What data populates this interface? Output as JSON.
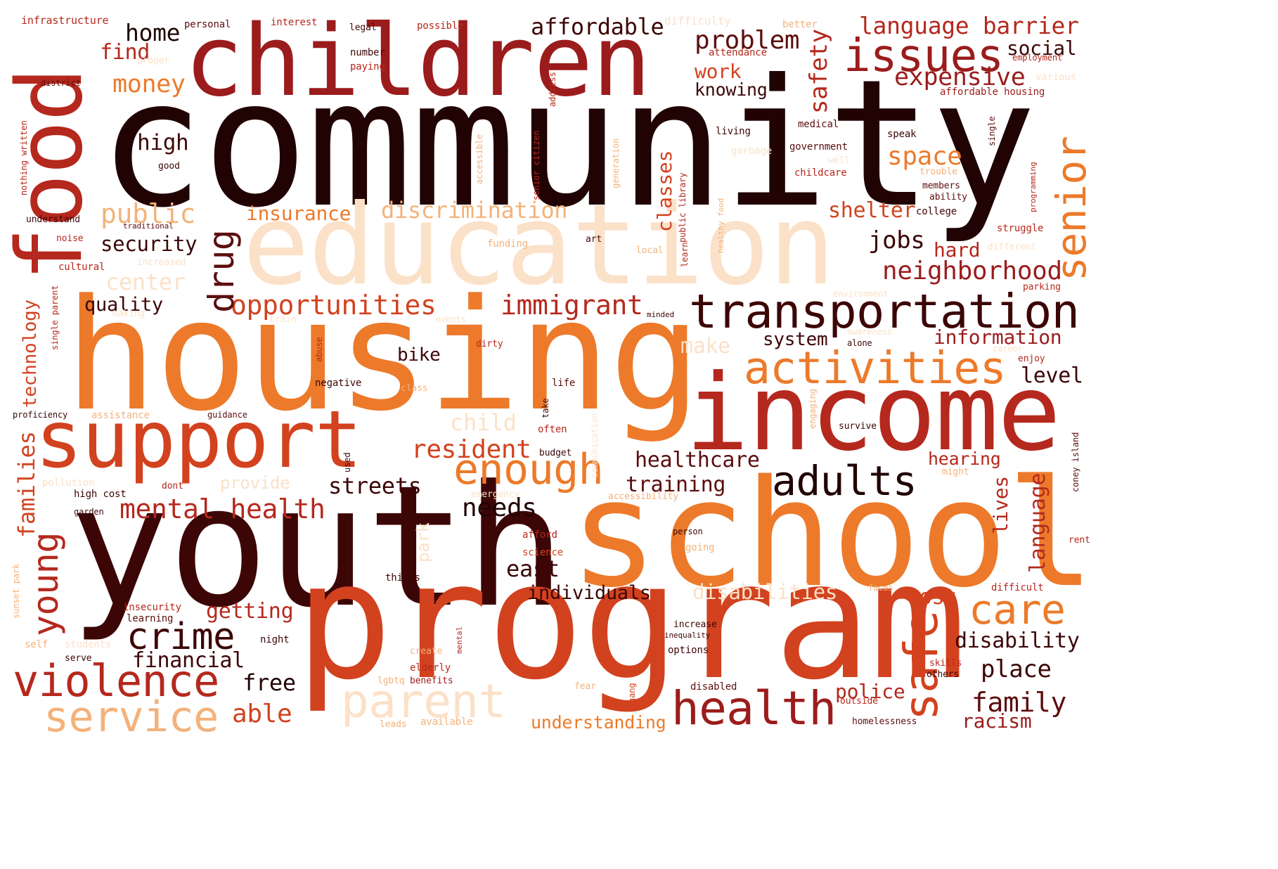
{
  "cloud": {
    "colors": {
      "darkest": "#210303",
      "dark": "#5c0e0e",
      "red": "#9b1c1c",
      "red2": "#b5281d",
      "orange": "#d2421f",
      "orange2": "#ec7a2a",
      "light": "#f4b27a",
      "pale": "#fbe1c8"
    },
    "words": [
      {
        "text": "community"
      },
      {
        "text": "housing"
      },
      {
        "text": "youth"
      },
      {
        "text": "program"
      },
      {
        "text": "school"
      },
      {
        "text": "education"
      },
      {
        "text": "children"
      },
      {
        "text": "income"
      },
      {
        "text": "food"
      },
      {
        "text": "support"
      },
      {
        "text": "transportation"
      },
      {
        "text": "activities"
      },
      {
        "text": "issues"
      },
      {
        "text": "health"
      },
      {
        "text": "violence"
      },
      {
        "text": "service"
      },
      {
        "text": "parent"
      },
      {
        "text": "enough"
      },
      {
        "text": "adults"
      },
      {
        "text": "senior"
      },
      {
        "text": "crime"
      },
      {
        "text": "safe"
      },
      {
        "text": "care"
      },
      {
        "text": "young"
      },
      {
        "text": "opportunities"
      },
      {
        "text": "immigrant"
      },
      {
        "text": "mental health"
      },
      {
        "text": "neighborhood"
      },
      {
        "text": "discrimination"
      },
      {
        "text": "problem"
      },
      {
        "text": "language barrier"
      },
      {
        "text": "affordable"
      },
      {
        "text": "expensive"
      },
      {
        "text": "drug"
      },
      {
        "text": "families"
      },
      {
        "text": "family"
      },
      {
        "text": "disability"
      },
      {
        "text": "insurance"
      },
      {
        "text": "public"
      },
      {
        "text": "money"
      },
      {
        "text": "home"
      },
      {
        "text": "find"
      },
      {
        "text": "safety"
      },
      {
        "text": "work"
      },
      {
        "text": "knowing"
      },
      {
        "text": "social"
      },
      {
        "text": "space"
      },
      {
        "text": "shelter"
      },
      {
        "text": "jobs"
      },
      {
        "text": "hard"
      },
      {
        "text": "security"
      },
      {
        "text": "center"
      },
      {
        "text": "quality"
      },
      {
        "text": "high"
      },
      {
        "text": "resident"
      },
      {
        "text": "healthcare"
      },
      {
        "text": "training"
      },
      {
        "text": "streets"
      },
      {
        "text": "needs"
      },
      {
        "text": "east"
      },
      {
        "text": "individuals"
      },
      {
        "text": "disabilities"
      },
      {
        "text": "cost"
      },
      {
        "text": "getting"
      },
      {
        "text": "financial"
      },
      {
        "text": "free"
      },
      {
        "text": "able"
      },
      {
        "text": "understanding"
      },
      {
        "text": "place"
      },
      {
        "text": "police"
      },
      {
        "text": "racism"
      },
      {
        "text": "information"
      },
      {
        "text": "system"
      },
      {
        "text": "level"
      },
      {
        "text": "make"
      },
      {
        "text": "bike"
      },
      {
        "text": "hearing"
      },
      {
        "text": "child"
      },
      {
        "text": "provide"
      },
      {
        "text": "classes"
      },
      {
        "text": "language"
      },
      {
        "text": "lives"
      },
      {
        "text": "technology"
      },
      {
        "text": "park"
      },
      {
        "text": "infrastructure"
      },
      {
        "text": "personal"
      },
      {
        "text": "interest"
      },
      {
        "text": "legal"
      },
      {
        "text": "possible"
      },
      {
        "text": "difficulty"
      },
      {
        "text": "better"
      },
      {
        "text": "number"
      },
      {
        "text": "paying"
      },
      {
        "text": "attendance"
      },
      {
        "text": "employment"
      },
      {
        "text": "proper"
      },
      {
        "text": "district"
      },
      {
        "text": "various"
      },
      {
        "text": "affordable housing"
      },
      {
        "text": "living"
      },
      {
        "text": "medical"
      },
      {
        "text": "speak"
      },
      {
        "text": "government"
      },
      {
        "text": "well"
      },
      {
        "text": "garbage"
      },
      {
        "text": "childcare"
      },
      {
        "text": "trouble"
      },
      {
        "text": "members"
      },
      {
        "text": "ability"
      },
      {
        "text": "college"
      },
      {
        "text": "struggle"
      },
      {
        "text": "different"
      },
      {
        "text": "parking"
      },
      {
        "text": "environment"
      },
      {
        "text": "good"
      },
      {
        "text": "understand"
      },
      {
        "text": "traditional"
      },
      {
        "text": "noise"
      },
      {
        "text": "cultural"
      },
      {
        "text": "increased"
      },
      {
        "text": "funding"
      },
      {
        "text": "art"
      },
      {
        "text": "local"
      },
      {
        "text": "making"
      },
      {
        "text": "train"
      },
      {
        "text": "minded"
      },
      {
        "text": "events"
      },
      {
        "text": "awareness"
      },
      {
        "text": "alone"
      },
      {
        "text": "career"
      },
      {
        "text": "enjoy"
      },
      {
        "text": "dirty"
      },
      {
        "text": "negative"
      },
      {
        "text": "class"
      },
      {
        "text": "life"
      },
      {
        "text": "proficiency"
      },
      {
        "text": "assistance"
      },
      {
        "text": "guidance"
      },
      {
        "text": "often"
      },
      {
        "text": "survive"
      },
      {
        "text": "budget"
      },
      {
        "text": "pollution"
      },
      {
        "text": "high cost"
      },
      {
        "text": "dont"
      },
      {
        "text": "emergency"
      },
      {
        "text": "accessibility"
      },
      {
        "text": "garden"
      },
      {
        "text": "afford"
      },
      {
        "text": "science"
      },
      {
        "text": "person"
      },
      {
        "text": "going"
      },
      {
        "text": "might"
      },
      {
        "text": "rent"
      },
      {
        "text": "things"
      },
      {
        "text": "faces"
      },
      {
        "text": "difficult"
      },
      {
        "text": "insecurity"
      },
      {
        "text": "learning"
      },
      {
        "text": "increase"
      },
      {
        "text": "inequality"
      },
      {
        "text": "self"
      },
      {
        "text": "students"
      },
      {
        "text": "night"
      },
      {
        "text": "create"
      },
      {
        "text": "options"
      },
      {
        "text": "serve"
      },
      {
        "text": "elderly"
      },
      {
        "text": "lgbtq"
      },
      {
        "text": "benefits"
      },
      {
        "text": "skills"
      },
      {
        "text": "others"
      },
      {
        "text": "fear"
      },
      {
        "text": "disabled"
      },
      {
        "text": "outside"
      },
      {
        "text": "leads"
      },
      {
        "text": "available"
      },
      {
        "text": "homelessness"
      },
      {
        "text": "nothing written"
      },
      {
        "text": "address"
      },
      {
        "text": "accessible"
      },
      {
        "text": "senior citizen"
      },
      {
        "text": "generation"
      },
      {
        "text": "public library"
      },
      {
        "text": "healthy food"
      },
      {
        "text": "learn"
      },
      {
        "text": "single"
      },
      {
        "text": "programming"
      },
      {
        "text": "single parent"
      },
      {
        "text": "abuse"
      },
      {
        "text": "take"
      },
      {
        "text": "communication"
      },
      {
        "text": "engaging"
      },
      {
        "text": "used"
      },
      {
        "text": "coney island"
      },
      {
        "text": "sunset park"
      },
      {
        "text": "mental"
      },
      {
        "text": "gang"
      }
    ]
  }
}
